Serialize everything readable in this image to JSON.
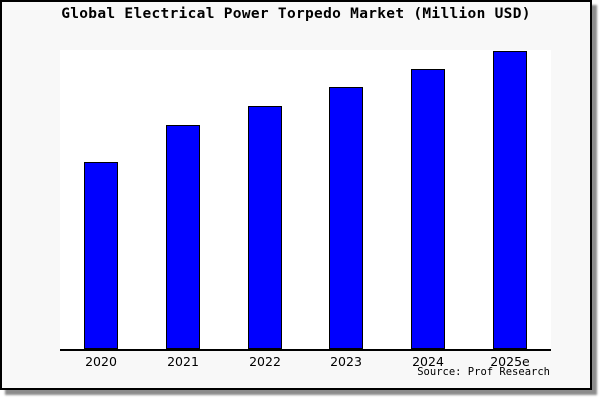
{
  "title": "Global Electrical Power Torpedo Market (Million USD)",
  "source": "Source: Prof Research",
  "colors": {
    "bar_fill": "#0000ff",
    "bar_edge": "#000000",
    "figure_background": "#f8f8f8",
    "plot_background": "#ffffff",
    "figure_border": "#000000",
    "shadow": "#8c8c8c"
  },
  "chart_data": {
    "type": "bar",
    "title": "Global Electrical Power Torpedo Market (Million USD)",
    "categories": [
      "2020",
      "2021",
      "2022",
      "2023",
      "2024",
      "2025e"
    ],
    "values": [
      188,
      225,
      244,
      263,
      281,
      299
    ],
    "xlabel": "",
    "ylabel": "",
    "ylim": [
      0,
      300
    ],
    "note": "No y-axis ticks, gridlines or data labels are shown; values are relative heights estimated from pixels (plot height = 300 units).",
    "grid": false,
    "legend": false,
    "annotations": [
      "Source: Prof Research"
    ]
  }
}
